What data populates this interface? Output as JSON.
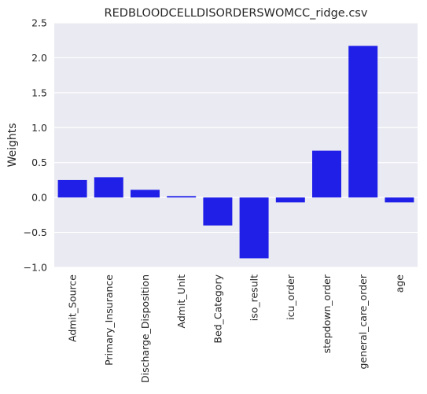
{
  "chart_data": {
    "type": "bar",
    "title": "REDBLOODCELLDISORDERSWOMCC_ridge.csv",
    "xlabel": "",
    "ylabel": "Weights",
    "categories": [
      "Admit_Source",
      "Primary_Insurance",
      "Discharge_Disposition",
      "Admit_Unit",
      "Bed_Category",
      "iso_result",
      "icu_order",
      "stepdown_order",
      "general_care_order",
      "age"
    ],
    "values": [
      0.25,
      0.29,
      0.11,
      0.02,
      -0.4,
      -0.87,
      -0.07,
      0.67,
      2.17,
      -0.07
    ],
    "ylim": [
      -1.0,
      2.5
    ],
    "yticks": [
      -1.0,
      -0.5,
      0.0,
      0.5,
      1.0,
      1.5,
      2.0,
      2.5
    ],
    "ytick_labels": [
      "−1.0",
      "−0.5",
      "0.0",
      "0.5",
      "1.0",
      "1.5",
      "2.0",
      "2.5"
    ],
    "grid": true,
    "legend": "none",
    "colors": {
      "bar": "#1f1fe8",
      "plot_background": "#eaeaf2",
      "grid": "#ffffff",
      "text": "#262626"
    }
  }
}
